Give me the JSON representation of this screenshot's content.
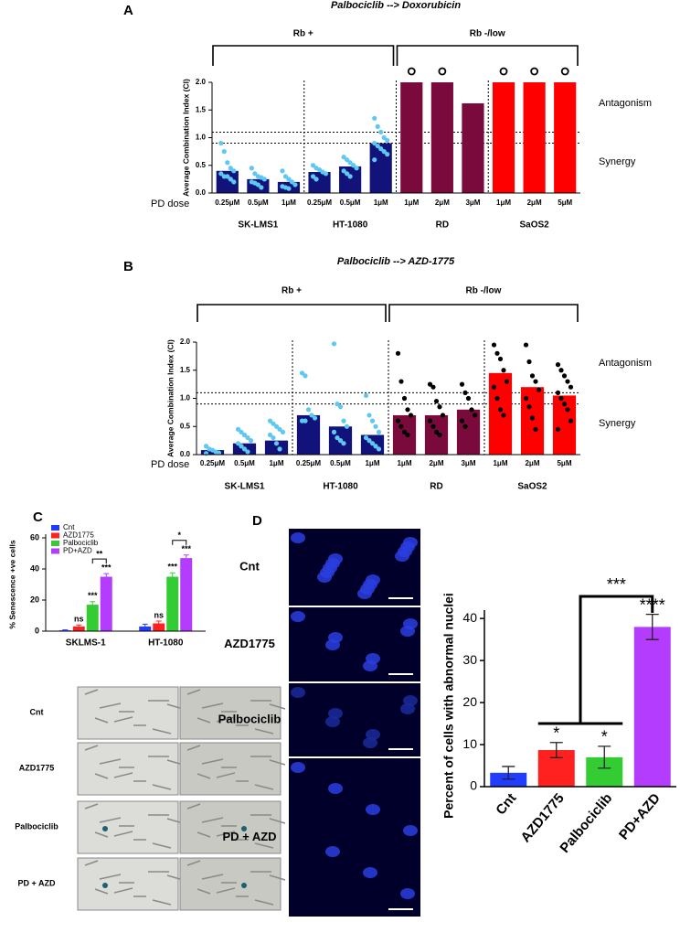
{
  "chart_data": [
    {
      "type": "bar-dot",
      "panel": "A",
      "title": "Palbociclib --> Doxorubicin",
      "y_label": "Average Combination Index (CI)",
      "x_label": "PD dose",
      "ylim": [
        0,
        2
      ],
      "yticks": [
        {
          "value": 0,
          "label": "0.0"
        },
        0.5,
        {
          "value": 1,
          "label": "1.0"
        },
        1.5,
        {
          "value": 2,
          "label": "2.0"
        }
      ],
      "reference_lines": [
        1.1,
        0.9
      ],
      "side_labels": [
        "Antagonism",
        "Synergy"
      ],
      "classes": [
        {
          "label": "Rb +",
          "groups": [
            {
              "name": "SK-LMS1",
              "color": "#12137a",
              "point_color": "#5ec8f2",
              "categories": [
                "0.25μM",
                "0.5μM",
                "1μM"
              ],
              "values": [
                0.4,
                0.25,
                0.2
              ],
              "points": [
                [
                  0.9,
                  0.75,
                  0.55,
                  0.45,
                  0.4,
                  0.35,
                  0.3,
                  0.3,
                  0.25,
                  0.2
                ],
                [
                  0.45,
                  0.35,
                  0.3,
                  0.28,
                  0.25,
                  0.2,
                  0.18,
                  0.15,
                  0.1
                ],
                [
                  0.4,
                  0.3,
                  0.25,
                  0.2,
                  0.15,
                  0.12,
                  0.1,
                  0.08
                ]
              ]
            },
            {
              "name": "HT-1080",
              "color": "#12137a",
              "point_color": "#5ec8f2",
              "categories": [
                "0.25μM",
                "0.5μM",
                "1μM"
              ],
              "values": [
                0.38,
                0.48,
                0.9
              ],
              "points": [
                [
                  0.5,
                  0.45,
                  0.42,
                  0.38,
                  0.35,
                  0.3,
                  0.25
                ],
                [
                  0.65,
                  0.6,
                  0.55,
                  0.5,
                  0.45,
                  0.4,
                  0.35,
                  0.3
                ],
                [
                  1.35,
                  1.2,
                  1.1,
                  1.0,
                  0.95,
                  0.9,
                  0.85,
                  0.8,
                  0.75,
                  0.7,
                  0.6
                ]
              ]
            }
          ]
        },
        {
          "label": "Rb -/low",
          "groups": [
            {
              "name": "RD",
              "color": "#7a0a3c",
              "categories": [
                "1μM",
                "2μM",
                "3μM"
              ],
              "values": [
                2,
                2,
                1.62
              ],
              "capped": [
                true,
                true,
                false
              ]
            },
            {
              "name": "SaOS2",
              "color": "#ff0000",
              "categories": [
                "1μM",
                "2μM",
                "5μM"
              ],
              "values": [
                2,
                2,
                2
              ],
              "capped": [
                true,
                true,
                true
              ]
            }
          ]
        }
      ]
    },
    {
      "type": "bar-dot",
      "panel": "B",
      "title": "Palbociclib --> AZD-1775",
      "y_label": "Average Combination Index (CI)",
      "x_label": "PD dose",
      "ylim": [
        0,
        2
      ],
      "yticks": [
        {
          "value": 0,
          "label": "0.0"
        },
        0.5,
        {
          "value": 1,
          "label": "1.0"
        },
        1.5,
        {
          "value": 2,
          "label": "2.0"
        }
      ],
      "reference_lines": [
        1.1,
        0.9
      ],
      "side_labels": [
        "Antagonism",
        "Synergy"
      ],
      "classes": [
        {
          "label": "Rb +",
          "groups": [
            {
              "name": "SK-LMS1",
              "color": "#12137a",
              "point_color": "#5ec8f2",
              "categories": [
                "0.25μM",
                "0.5μM",
                "1μM"
              ],
              "values": [
                0.08,
                0.2,
                0.25
              ],
              "points": [
                [
                  0.15,
                  0.1,
                  0.08,
                  0.05,
                  0.03,
                  0.02
                ],
                [
                  0.45,
                  0.4,
                  0.35,
                  0.3,
                  0.25,
                  0.2,
                  0.15,
                  0.1,
                  0.05
                ],
                [
                  0.6,
                  0.55,
                  0.5,
                  0.45,
                  0.4,
                  0.35,
                  0.3,
                  0.2,
                  0.1
                ]
              ]
            },
            {
              "name": "HT-1080",
              "color": "#12137a",
              "point_color": "#5ec8f2",
              "categories": [
                "0.25μM",
                "0.5μM",
                "1μM"
              ],
              "values": [
                0.7,
                0.5,
                0.35
              ],
              "points": [
                [
                  1.45,
                  1.4,
                  0.8,
                  0.7,
                  0.65,
                  0.6,
                  0.6
                ],
                [
                  1.97,
                  0.9,
                  0.85,
                  0.6,
                  0.5,
                  0.4,
                  0.3,
                  0.25,
                  0.2
                ],
                [
                  1.05,
                  0.7,
                  0.6,
                  0.5,
                  0.4,
                  0.3,
                  0.25,
                  0.2,
                  0.15,
                  0.1
                ]
              ]
            }
          ]
        },
        {
          "label": "Rb -/low",
          "groups": [
            {
              "name": "RD",
              "color": "#7a0a3c",
              "point_color": "#000000",
              "categories": [
                "1μM",
                "2μM",
                "3μM"
              ],
              "values": [
                0.7,
                0.7,
                0.8
              ],
              "points": [
                [
                  1.8,
                  1.3,
                  1.0,
                  0.8,
                  0.7,
                  0.6,
                  0.5,
                  0.4,
                  0.35
                ],
                [
                  1.25,
                  1.2,
                  0.95,
                  0.85,
                  0.7,
                  0.6,
                  0.5,
                  0.4,
                  0.35
                ],
                [
                  1.25,
                  1.1,
                  1.0,
                  0.8,
                  0.7,
                  0.6,
                  0.5
                ]
              ]
            },
            {
              "name": "SaOS2",
              "color": "#ff0000",
              "point_color": "#000000",
              "categories": [
                "1μM",
                "2μM",
                "5μM"
              ],
              "values": [
                1.45,
                1.2,
                1.05
              ],
              "points": [
                [
                  1.95,
                  1.8,
                  1.7,
                  1.5,
                  1.3,
                  1.2,
                  1.0,
                  0.8,
                  0.7
                ],
                [
                  1.95,
                  1.65,
                  1.4,
                  1.3,
                  1.15,
                  1.0,
                  0.85,
                  0.65,
                  0.45
                ],
                [
                  1.6,
                  1.5,
                  1.4,
                  1.3,
                  1.2,
                  1.1,
                  1.0,
                  0.9,
                  0.8,
                  0.6,
                  0.45
                ]
              ]
            }
          ]
        }
      ]
    },
    {
      "type": "grouped-bar",
      "panel": "C",
      "y_label": "% Senescence +ve cells",
      "categories": [
        "SKLMS-1",
        "HT-1080"
      ],
      "ylim": [
        0,
        60
      ],
      "yticks": [
        0,
        20,
        40,
        60
      ],
      "series": [
        {
          "name": "Cnt",
          "color": "#1f3cff",
          "values": [
            0.5,
            3
          ],
          "errors": [
            0.3,
            1.5
          ]
        },
        {
          "name": "AZD1775",
          "color": "#ff2020",
          "values": [
            3,
            5
          ],
          "errors": [
            1,
            1.5
          ],
          "significance": [
            "ns",
            "ns"
          ]
        },
        {
          "name": "Palbociclib",
          "color": "#33cc33",
          "values": [
            17,
            35
          ],
          "errors": [
            2,
            2.5
          ],
          "significance": [
            "***",
            "***"
          ]
        },
        {
          "name": "PD+AZD",
          "color": "#b43cff",
          "values": [
            35,
            47
          ],
          "errors": [
            2,
            2
          ],
          "significance": [
            "***",
            "***"
          ]
        }
      ],
      "comparisons": [
        {
          "label": "**"
        },
        {
          "label": "*"
        }
      ]
    },
    {
      "type": "bar",
      "panel": "D",
      "y_label": "Percent of  cells with abnormal nuclei",
      "categories": [
        "Cnt",
        "AZD1775",
        "Palbociclib",
        "PD+AZD"
      ],
      "values": [
        3.3,
        8.7,
        7,
        38
      ],
      "errors": [
        1.5,
        1.8,
        2.6,
        3
      ],
      "colors": [
        "#1f3cff",
        "#ff2020",
        "#33cc33",
        "#b43cff"
      ],
      "significance": [
        null,
        "*",
        "*",
        "****"
      ],
      "comparison": {
        "label": "***"
      },
      "ylim": [
        0,
        42
      ],
      "yticks": [
        0,
        10,
        20,
        30,
        40
      ]
    }
  ],
  "panel_C_images": {
    "rows": [
      "Cnt",
      "AZD1775",
      "Palbociclib",
      "PD + AZD"
    ]
  },
  "panel_D_images": {
    "rows": [
      "Cnt",
      "AZD1775",
      "Palbociclib",
      "PD + AZD"
    ]
  }
}
